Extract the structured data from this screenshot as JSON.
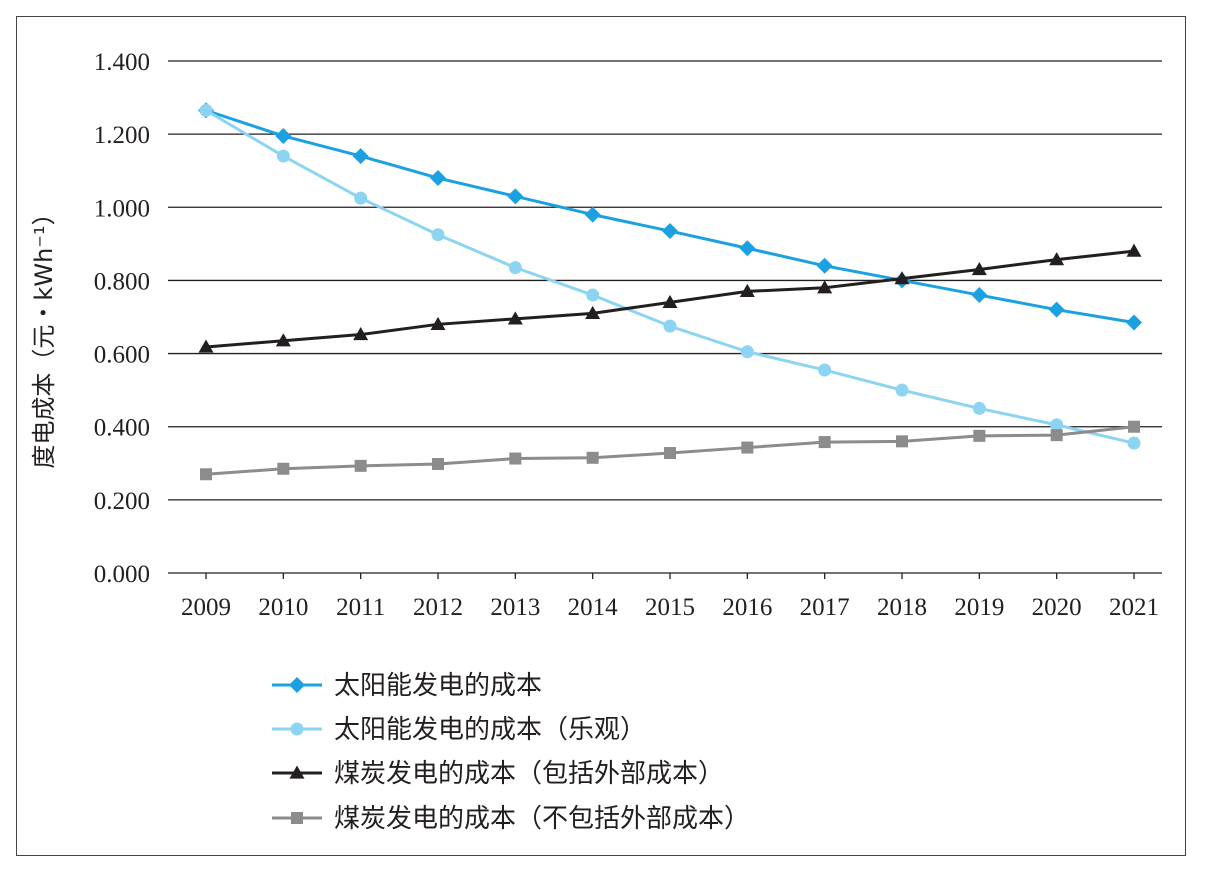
{
  "chart_data": {
    "type": "line",
    "title": "",
    "xlabel": "",
    "ylabel": "度电成本（元・kWh⁻¹）",
    "ylim": [
      0,
      1.4
    ],
    "yticks": [
      "0.000",
      "0.200",
      "0.400",
      "0.600",
      "0.800",
      "1.000",
      "1.200",
      "1.400"
    ],
    "ytick_values": [
      0,
      0.2,
      0.4,
      0.6,
      0.8,
      1.0,
      1.2,
      1.4
    ],
    "x": [
      "2009",
      "2010",
      "2011",
      "2012",
      "2013",
      "2014",
      "2015",
      "2016",
      "2017",
      "2018",
      "2019",
      "2020",
      "2021"
    ],
    "grid": "horizontal",
    "legend_position": "bottom",
    "series": [
      {
        "name": "太阳能发电的成本",
        "color": "#1ba1e2",
        "marker": "diamond",
        "values": [
          1.265,
          1.195,
          1.14,
          1.08,
          1.03,
          0.98,
          0.935,
          0.888,
          0.84,
          0.8,
          0.76,
          0.72,
          0.685
        ]
      },
      {
        "name": "太阳能发电的成本（乐观）",
        "color": "#8dd4f2",
        "marker": "circle",
        "values": [
          1.265,
          1.14,
          1.025,
          0.925,
          0.835,
          0.76,
          0.675,
          0.605,
          0.555,
          0.5,
          0.45,
          0.405,
          0.355
        ]
      },
      {
        "name": "煤炭发电的成本（包括外部成本）",
        "color": "#231f20",
        "marker": "triangle",
        "values": [
          0.618,
          0.635,
          0.652,
          0.68,
          0.695,
          0.71,
          0.74,
          0.77,
          0.78,
          0.805,
          0.83,
          0.857,
          0.88
        ]
      },
      {
        "name": "煤炭发电的成本（不包括外部成本）",
        "color": "#8c8c8c",
        "marker": "square",
        "values": [
          0.27,
          0.285,
          0.293,
          0.298,
          0.313,
          0.315,
          0.328,
          0.343,
          0.358,
          0.36,
          0.375,
          0.377,
          0.4
        ]
      }
    ]
  }
}
